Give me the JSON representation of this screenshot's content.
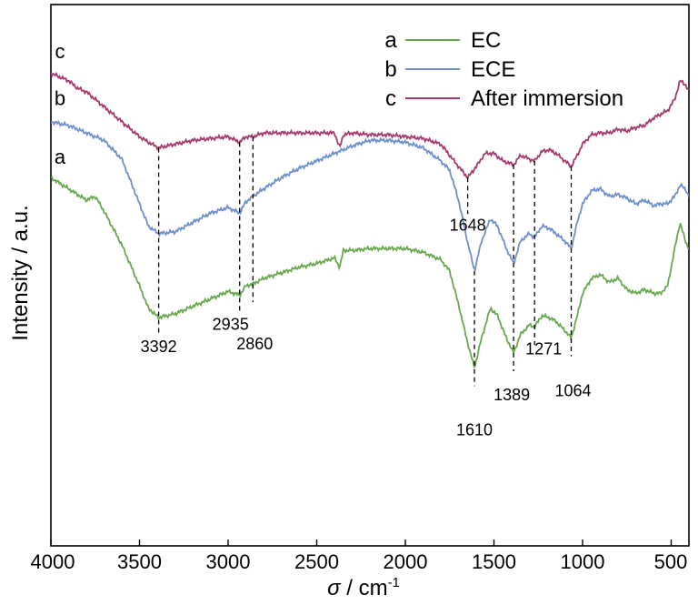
{
  "chart_data": {
    "type": "line",
    "xlabel_symbol": "σ",
    "xlabel_unit": " / cm",
    "xlabel_exponent": "-1",
    "ylabel": "Intensity / a.u.",
    "xlim": [
      4000,
      400
    ],
    "x_reversed": true,
    "x_ticks": [
      4000,
      3500,
      3000,
      2500,
      2000,
      1500,
      1000,
      500
    ],
    "x_tick_labels": [
      "4000",
      "3500",
      "3000",
      "2500",
      "2000",
      "1500",
      "1000",
      "500"
    ],
    "ylim": [
      0,
      1
    ],
    "y_ticks_shown": false,
    "grid": false,
    "legend_position": "top-right",
    "legend": [
      {
        "letter": "a",
        "name": "EC",
        "color": "#6aa84f"
      },
      {
        "letter": "b",
        "name": "ECE",
        "color": "#6f8fcb"
      },
      {
        "letter": "c",
        "name": "After immersion",
        "color": "#a63a6e"
      }
    ],
    "series": [
      {
        "letter": "a",
        "name": "EC",
        "color": "#6aa84f",
        "points": [
          [
            4000,
            0.67
          ],
          [
            3900,
            0.64
          ],
          [
            3800,
            0.61
          ],
          [
            3750,
            0.62
          ],
          [
            3700,
            0.58
          ],
          [
            3600,
            0.49
          ],
          [
            3500,
            0.38
          ],
          [
            3450,
            0.32
          ],
          [
            3392,
            0.295
          ],
          [
            3300,
            0.305
          ],
          [
            3200,
            0.325
          ],
          [
            3100,
            0.345
          ],
          [
            3000,
            0.365
          ],
          [
            2935,
            0.355
          ],
          [
            2900,
            0.38
          ],
          [
            2860,
            0.385
          ],
          [
            2800,
            0.4
          ],
          [
            2700,
            0.415
          ],
          [
            2600,
            0.43
          ],
          [
            2500,
            0.44
          ],
          [
            2400,
            0.455
          ],
          [
            2370,
            0.43
          ],
          [
            2350,
            0.475
          ],
          [
            2300,
            0.475
          ],
          [
            2200,
            0.48
          ],
          [
            2100,
            0.48
          ],
          [
            2000,
            0.48
          ],
          [
            1900,
            0.47
          ],
          [
            1800,
            0.45
          ],
          [
            1750,
            0.42
          ],
          [
            1700,
            0.33
          ],
          [
            1650,
            0.23
          ],
          [
            1610,
            0.16
          ],
          [
            1570,
            0.24
          ],
          [
            1520,
            0.32
          ],
          [
            1480,
            0.3
          ],
          [
            1430,
            0.24
          ],
          [
            1389,
            0.2
          ],
          [
            1350,
            0.25
          ],
          [
            1300,
            0.275
          ],
          [
            1271,
            0.27
          ],
          [
            1230,
            0.3
          ],
          [
            1190,
            0.295
          ],
          [
            1150,
            0.285
          ],
          [
            1100,
            0.26
          ],
          [
            1064,
            0.24
          ],
          [
            1030,
            0.3
          ],
          [
            1000,
            0.36
          ],
          [
            950,
            0.4
          ],
          [
            900,
            0.41
          ],
          [
            850,
            0.39
          ],
          [
            800,
            0.4
          ],
          [
            750,
            0.37
          ],
          [
            700,
            0.36
          ],
          [
            650,
            0.37
          ],
          [
            600,
            0.36
          ],
          [
            560,
            0.36
          ],
          [
            520,
            0.38
          ],
          [
            480,
            0.48
          ],
          [
            450,
            0.55
          ],
          [
            420,
            0.5
          ],
          [
            400,
            0.48
          ]
        ]
      },
      {
        "letter": "b",
        "name": "ECE",
        "color": "#6f8fcb",
        "points": [
          [
            4000,
            0.82
          ],
          [
            3900,
            0.81
          ],
          [
            3800,
            0.79
          ],
          [
            3700,
            0.77
          ],
          [
            3600,
            0.72
          ],
          [
            3500,
            0.6
          ],
          [
            3450,
            0.54
          ],
          [
            3392,
            0.52
          ],
          [
            3300,
            0.525
          ],
          [
            3200,
            0.55
          ],
          [
            3100,
            0.575
          ],
          [
            3000,
            0.59
          ],
          [
            2935,
            0.575
          ],
          [
            2900,
            0.605
          ],
          [
            2860,
            0.62
          ],
          [
            2800,
            0.64
          ],
          [
            2700,
            0.67
          ],
          [
            2600,
            0.695
          ],
          [
            2500,
            0.715
          ],
          [
            2400,
            0.735
          ],
          [
            2300,
            0.755
          ],
          [
            2200,
            0.77
          ],
          [
            2100,
            0.77
          ],
          [
            2000,
            0.765
          ],
          [
            1900,
            0.75
          ],
          [
            1800,
            0.715
          ],
          [
            1750,
            0.69
          ],
          [
            1700,
            0.61
          ],
          [
            1650,
            0.5
          ],
          [
            1610,
            0.42
          ],
          [
            1570,
            0.5
          ],
          [
            1520,
            0.56
          ],
          [
            1480,
            0.54
          ],
          [
            1430,
            0.48
          ],
          [
            1389,
            0.44
          ],
          [
            1350,
            0.5
          ],
          [
            1300,
            0.52
          ],
          [
            1271,
            0.51
          ],
          [
            1230,
            0.54
          ],
          [
            1190,
            0.535
          ],
          [
            1150,
            0.52
          ],
          [
            1100,
            0.5
          ],
          [
            1064,
            0.48
          ],
          [
            1030,
            0.55
          ],
          [
            1000,
            0.6
          ],
          [
            950,
            0.635
          ],
          [
            900,
            0.64
          ],
          [
            850,
            0.62
          ],
          [
            800,
            0.625
          ],
          [
            750,
            0.615
          ],
          [
            700,
            0.6
          ],
          [
            650,
            0.61
          ],
          [
            600,
            0.595
          ],
          [
            560,
            0.6
          ],
          [
            520,
            0.6
          ],
          [
            480,
            0.62
          ],
          [
            450,
            0.65
          ],
          [
            420,
            0.64
          ],
          [
            400,
            0.62
          ]
        ]
      },
      {
        "letter": "c",
        "name": "After immersion",
        "color": "#a63a6e",
        "points": [
          [
            4000,
            0.95
          ],
          [
            3900,
            0.93
          ],
          [
            3850,
            0.91
          ],
          [
            3800,
            0.9
          ],
          [
            3700,
            0.86
          ],
          [
            3600,
            0.82
          ],
          [
            3500,
            0.78
          ],
          [
            3450,
            0.765
          ],
          [
            3392,
            0.75
          ],
          [
            3300,
            0.76
          ],
          [
            3200,
            0.77
          ],
          [
            3100,
            0.775
          ],
          [
            3000,
            0.78
          ],
          [
            2935,
            0.765
          ],
          [
            2900,
            0.78
          ],
          [
            2860,
            0.78
          ],
          [
            2800,
            0.79
          ],
          [
            2700,
            0.79
          ],
          [
            2600,
            0.79
          ],
          [
            2500,
            0.79
          ],
          [
            2400,
            0.79
          ],
          [
            2370,
            0.75
          ],
          [
            2350,
            0.785
          ],
          [
            2300,
            0.79
          ],
          [
            2200,
            0.785
          ],
          [
            2100,
            0.785
          ],
          [
            2000,
            0.78
          ],
          [
            1900,
            0.775
          ],
          [
            1800,
            0.76
          ],
          [
            1750,
            0.73
          ],
          [
            1700,
            0.7
          ],
          [
            1648,
            0.67
          ],
          [
            1600,
            0.7
          ],
          [
            1550,
            0.735
          ],
          [
            1500,
            0.735
          ],
          [
            1450,
            0.715
          ],
          [
            1389,
            0.705
          ],
          [
            1350,
            0.73
          ],
          [
            1300,
            0.72
          ],
          [
            1271,
            0.715
          ],
          [
            1230,
            0.74
          ],
          [
            1190,
            0.745
          ],
          [
            1150,
            0.735
          ],
          [
            1100,
            0.715
          ],
          [
            1064,
            0.7
          ],
          [
            1030,
            0.73
          ],
          [
            1000,
            0.76
          ],
          [
            950,
            0.785
          ],
          [
            900,
            0.79
          ],
          [
            850,
            0.79
          ],
          [
            800,
            0.8
          ],
          [
            750,
            0.795
          ],
          [
            700,
            0.805
          ],
          [
            650,
            0.81
          ],
          [
            600,
            0.83
          ],
          [
            560,
            0.84
          ],
          [
            520,
            0.85
          ],
          [
            480,
            0.88
          ],
          [
            450,
            0.93
          ],
          [
            420,
            0.92
          ],
          [
            400,
            0.9
          ]
        ]
      }
    ],
    "curve_labels": [
      {
        "text": "c",
        "series": "c"
      },
      {
        "text": "b",
        "series": "b"
      },
      {
        "text": "a",
        "series": "a"
      }
    ],
    "peaks": [
      {
        "label": "3392",
        "x": 3392,
        "from_series": "c",
        "to_series": "a",
        "label_position": "below"
      },
      {
        "label": "2935",
        "x": 2935,
        "from_series": "c",
        "to_series": "a",
        "label_position": "below"
      },
      {
        "label": "2860",
        "x": 2860,
        "from_series": "c",
        "to_series": "a",
        "label_position": "below-low"
      },
      {
        "label": "1648",
        "x": 1648,
        "from_series": "c",
        "to_series": "c",
        "label_position": "mid"
      },
      {
        "label": "1610",
        "x": 1610,
        "from_series": "b",
        "to_series": "a",
        "label_position": "below-low"
      },
      {
        "label": "1389",
        "x": 1389,
        "from_series": "c",
        "to_series": "a",
        "label_position": "below"
      },
      {
        "label": "1271",
        "x": 1271,
        "from_series": "c",
        "to_series": "a",
        "label_position": "below-right"
      },
      {
        "label": "1064",
        "x": 1064,
        "from_series": "c",
        "to_series": "a",
        "label_position": "below-low"
      }
    ]
  }
}
